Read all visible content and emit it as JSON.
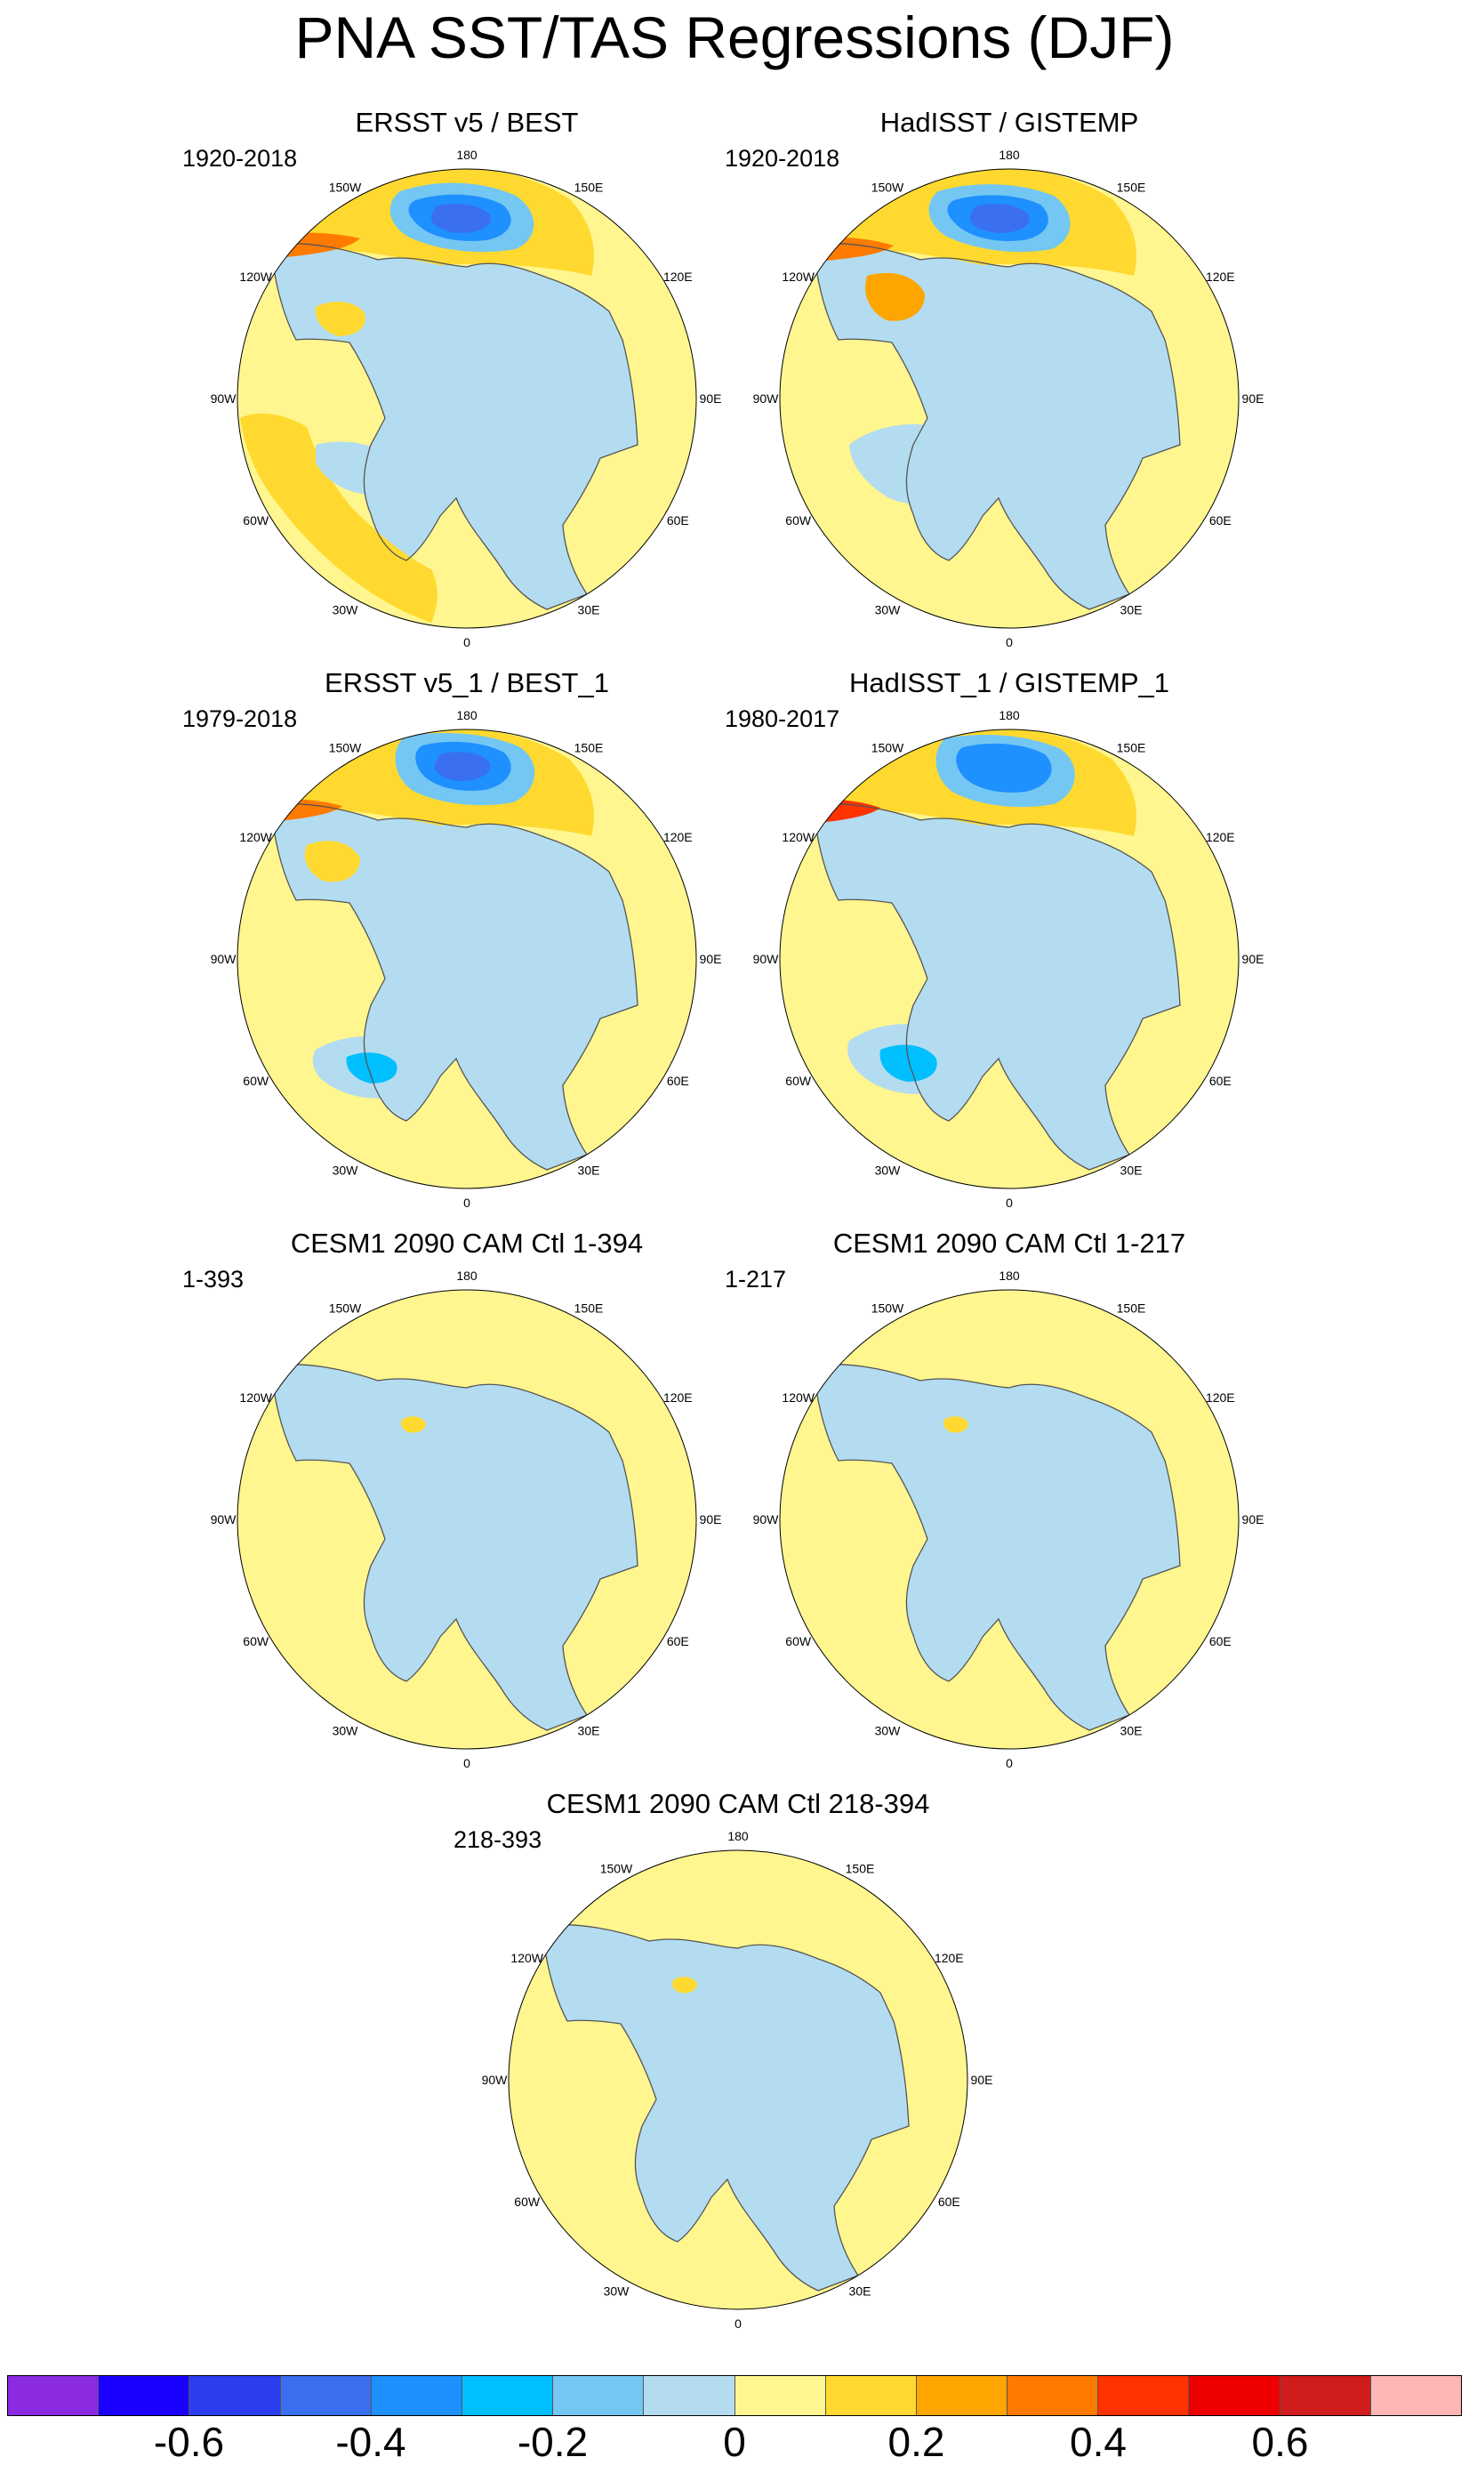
{
  "title": "PNA SST/TAS Regressions (DJF)",
  "longitude_labels": [
    "180",
    "150E",
    "120E",
    "90E",
    "60E",
    "30E",
    "0",
    "30W",
    "60W",
    "90W",
    "120W",
    "150W"
  ],
  "panels": [
    {
      "title": "ERSST v5 / BEST",
      "period": "1920-2018",
      "pattern": "obs_long_a"
    },
    {
      "title": "HadISST / GISTEMP",
      "period": "1920-2018",
      "pattern": "obs_long_b"
    },
    {
      "title": "ERSST v5_1 / BEST_1",
      "period": "1979-2018",
      "pattern": "obs_short_a"
    },
    {
      "title": "HadISST_1 / GISTEMP_1",
      "period": "1980-2017",
      "pattern": "obs_short_b"
    },
    {
      "title": "CESM1 2090 CAM Ctl 1-394",
      "period": "1-393",
      "pattern": "model"
    },
    {
      "title": "CESM1 2090 CAM Ctl 1-217",
      "period": "1-217",
      "pattern": "model"
    },
    {
      "title": "CESM1 2090 CAM Ctl 218-394",
      "period": "218-393",
      "pattern": "model"
    }
  ],
  "colorbar": {
    "colors": [
      "#8a2be2",
      "#1a00ff",
      "#2b3ff0",
      "#3a6ff0",
      "#1e90ff",
      "#00bfff",
      "#74c7f2",
      "#b3dcf0",
      "#fff68f",
      "#ffd92f",
      "#ffa500",
      "#ff7b00",
      "#ff3300",
      "#ee0000",
      "#d01c1c",
      "#ffb6b6"
    ],
    "labels": [
      "-0.6",
      "-0.4",
      "-0.2",
      "0",
      "0.2",
      "0.4",
      "0.6"
    ]
  }
}
